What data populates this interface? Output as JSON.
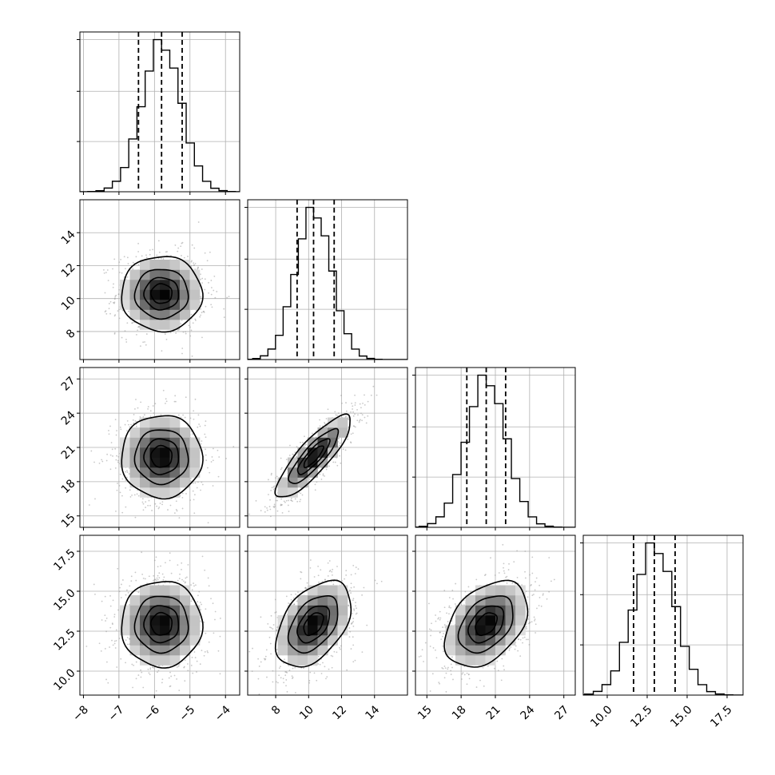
{
  "chart_data": {
    "type": "corner",
    "title": "",
    "grid": true,
    "colors": {
      "hist": "#000000",
      "points": "#9a9a9a",
      "contour": "#000000",
      "grid": "#b0b0b0"
    },
    "parameters": [
      {
        "index": 0,
        "range": [
          -8.1,
          -3.6
        ],
        "ticks": [
          -8,
          -7,
          -6,
          -5,
          -4
        ],
        "tick_labels": [
          "−8",
          "−7",
          "−6",
          "−5",
          "−4"
        ],
        "mean": -5.8,
        "sd": 0.55,
        "quantiles": [
          -6.45,
          -5.8,
          -5.22
        ]
      },
      {
        "index": 1,
        "range": [
          6.3,
          16.0
        ],
        "ticks": [
          8,
          10,
          12,
          14
        ],
        "tick_labels": [
          "8",
          "10",
          "12",
          "14"
        ],
        "mean": 10.3,
        "sd": 1.1,
        "quantiles": [
          9.3,
          10.3,
          11.55
        ]
      },
      {
        "index": 2,
        "range": [
          14.0,
          28.0
        ],
        "ticks": [
          15,
          18,
          21,
          24,
          27
        ],
        "tick_labels": [
          "15",
          "18",
          "21",
          "24",
          "27"
        ],
        "mean": 20.2,
        "sd": 1.75,
        "quantiles": [
          18.5,
          20.2,
          21.9
        ]
      },
      {
        "index": 3,
        "range": [
          8.5,
          18.5
        ],
        "ticks": [
          10.0,
          12.5,
          15.0,
          17.5
        ],
        "tick_labels": [
          "10.0",
          "12.5",
          "15.0",
          "17.5"
        ],
        "mean": 12.95,
        "sd": 1.3,
        "quantiles": [
          11.65,
          12.95,
          14.25
        ]
      }
    ],
    "correlations": [
      {
        "pair": [
          1,
          0
        ],
        "rho": 0.0
      },
      {
        "pair": [
          2,
          0
        ],
        "rho": 0.0
      },
      {
        "pair": [
          2,
          1
        ],
        "rho": 0.85
      },
      {
        "pair": [
          3,
          0
        ],
        "rho": 0.0
      },
      {
        "pair": [
          3,
          1
        ],
        "rho": 0.45
      },
      {
        "pair": [
          3,
          2
        ],
        "rho": 0.4
      }
    ],
    "histogram_bins": 20,
    "contour_levels_sigma": [
      0.5,
      1.0,
      1.5,
      2.0
    ]
  }
}
